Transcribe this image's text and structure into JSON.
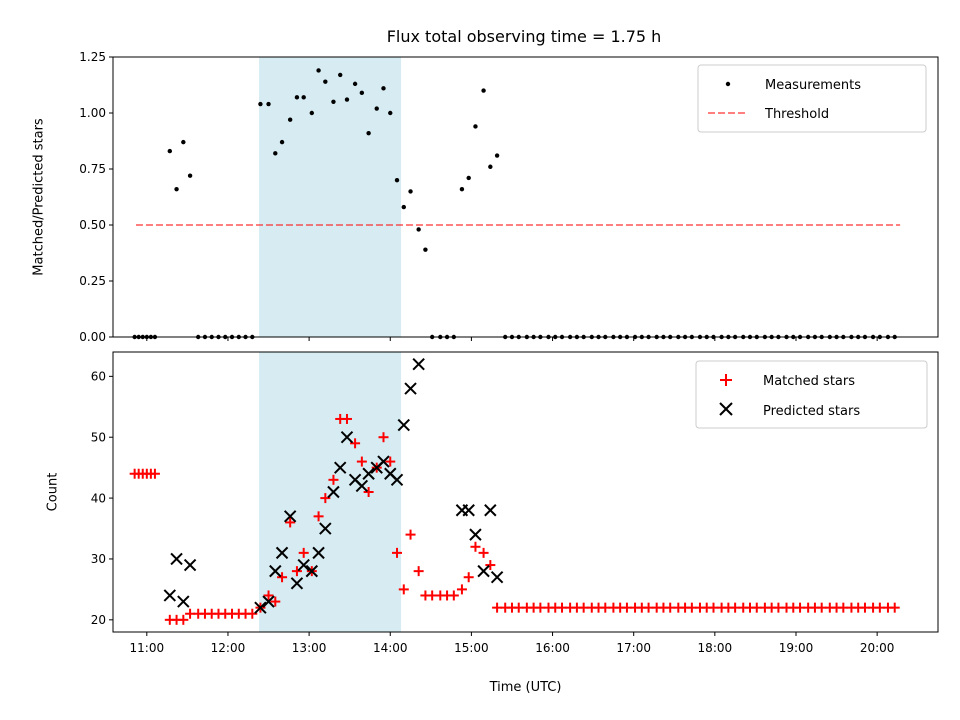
{
  "title": "Flux total observing time = 1.75 h",
  "chart_data": [
    {
      "type": "scatter",
      "ylabel": "Matched/Predicted stars",
      "xlabel": "",
      "xlim": [
        "10:35",
        "20:45"
      ],
      "ylim": [
        0,
        1.25
      ],
      "yticks": [
        "0.00",
        "0.25",
        "0.50",
        "0.75",
        "1.00",
        "1.25"
      ],
      "shaded_region": [
        "12:23",
        "14:08"
      ],
      "threshold": 0.5,
      "threshold_range": [
        "10:52",
        "20:17"
      ],
      "legend": [
        "Measurements",
        "Threshold"
      ],
      "legend_position": "top-right",
      "series": [
        {
          "name": "Measurements",
          "points": [
            [
              "10:51",
              0
            ],
            [
              "10:54",
              0
            ],
            [
              "10:57",
              0
            ],
            [
              "11:00",
              0
            ],
            [
              "11:03",
              0
            ],
            [
              "11:06",
              0
            ],
            [
              "11:17",
              0.83
            ],
            [
              "11:22",
              0.66
            ],
            [
              "11:27",
              0.87
            ],
            [
              "11:32",
              0.72
            ],
            [
              "11:38",
              0
            ],
            [
              "11:43",
              0
            ],
            [
              "11:48",
              0
            ],
            [
              "11:53",
              0
            ],
            [
              "11:58",
              0
            ],
            [
              "12:03",
              0
            ],
            [
              "12:08",
              0
            ],
            [
              "12:13",
              0
            ],
            [
              "12:18",
              0
            ],
            [
              "12:24",
              1.04
            ],
            [
              "12:30",
              1.04
            ],
            [
              "12:35",
              0.82
            ],
            [
              "12:40",
              0.87
            ],
            [
              "12:46",
              0.97
            ],
            [
              "12:51",
              1.07
            ],
            [
              "12:56",
              1.07
            ],
            [
              "13:02",
              1.0
            ],
            [
              "13:07",
              1.19
            ],
            [
              "13:12",
              1.14
            ],
            [
              "13:18",
              1.05
            ],
            [
              "13:23",
              1.17
            ],
            [
              "13:28",
              1.06
            ],
            [
              "13:34",
              1.13
            ],
            [
              "13:39",
              1.09
            ],
            [
              "13:44",
              0.91
            ],
            [
              "13:50",
              1.02
            ],
            [
              "13:55",
              1.11
            ],
            [
              "14:00",
              1.0
            ],
            [
              "14:05",
              0.7
            ],
            [
              "14:10",
              0.58
            ],
            [
              "14:15",
              0.65
            ],
            [
              "14:21",
              0.48
            ],
            [
              "14:26",
              0.39
            ],
            [
              "14:31",
              0
            ],
            [
              "14:37",
              0
            ],
            [
              "14:42",
              0
            ],
            [
              "14:47",
              0
            ],
            [
              "14:53",
              0.66
            ],
            [
              "14:58",
              0.71
            ],
            [
              "15:03",
              0.94
            ],
            [
              "15:09",
              1.1
            ],
            [
              "15:14",
              0.76
            ],
            [
              "15:19",
              0.81
            ],
            [
              "15:25",
              0
            ],
            [
              "15:30",
              0
            ],
            [
              "15:35",
              0
            ],
            [
              "15:41",
              0
            ],
            [
              "15:46",
              0
            ],
            [
              "15:51",
              0
            ],
            [
              "15:57",
              0
            ],
            [
              "16:02",
              0
            ],
            [
              "16:07",
              0
            ],
            [
              "16:13",
              0
            ],
            [
              "16:18",
              0
            ],
            [
              "16:23",
              0
            ],
            [
              "16:29",
              0
            ],
            [
              "16:34",
              0
            ],
            [
              "16:39",
              0
            ],
            [
              "16:45",
              0
            ],
            [
              "16:50",
              0
            ],
            [
              "16:55",
              0
            ],
            [
              "17:01",
              0
            ],
            [
              "17:06",
              0
            ],
            [
              "17:11",
              0
            ],
            [
              "17:17",
              0
            ],
            [
              "17:22",
              0
            ],
            [
              "17:27",
              0
            ],
            [
              "17:33",
              0
            ],
            [
              "17:38",
              0
            ],
            [
              "17:43",
              0
            ],
            [
              "17:49",
              0
            ],
            [
              "17:54",
              0
            ],
            [
              "17:59",
              0
            ],
            [
              "18:05",
              0
            ],
            [
              "18:10",
              0
            ],
            [
              "18:15",
              0
            ],
            [
              "18:21",
              0
            ],
            [
              "18:26",
              0
            ],
            [
              "18:31",
              0
            ],
            [
              "18:37",
              0
            ],
            [
              "18:42",
              0
            ],
            [
              "18:47",
              0
            ],
            [
              "18:53",
              0
            ],
            [
              "18:58",
              0
            ],
            [
              "19:03",
              0
            ],
            [
              "19:09",
              0
            ],
            [
              "19:14",
              0
            ],
            [
              "19:19",
              0
            ],
            [
              "19:25",
              0
            ],
            [
              "19:30",
              0
            ],
            [
              "19:35",
              0
            ],
            [
              "19:41",
              0
            ],
            [
              "19:46",
              0
            ],
            [
              "19:51",
              0
            ],
            [
              "19:57",
              0
            ],
            [
              "20:02",
              0
            ],
            [
              "20:08",
              0
            ],
            [
              "20:13",
              0
            ]
          ]
        }
      ]
    },
    {
      "type": "scatter",
      "xlabel": "Time (UTC)",
      "ylabel": "Count",
      "xlim": [
        "10:35",
        "20:45"
      ],
      "ylim": [
        18,
        64
      ],
      "yticks": [
        "20",
        "30",
        "40",
        "50",
        "60"
      ],
      "xticks": [
        "11:00",
        "12:00",
        "13:00",
        "14:00",
        "15:00",
        "16:00",
        "17:00",
        "18:00",
        "19:00",
        "20:00"
      ],
      "shaded_region": [
        "12:23",
        "14:08"
      ],
      "legend": [
        "Matched stars",
        "Predicted stars"
      ],
      "legend_position": "top-right",
      "series": [
        {
          "name": "Matched stars",
          "points": [
            [
              "10:51",
              44
            ],
            [
              "10:54",
              44
            ],
            [
              "10:57",
              44
            ],
            [
              "11:00",
              44
            ],
            [
              "11:03",
              44
            ],
            [
              "11:06",
              44
            ],
            [
              "11:17",
              20
            ],
            [
              "11:22",
              20
            ],
            [
              "11:27",
              20
            ],
            [
              "11:32",
              21
            ],
            [
              "11:38",
              21
            ],
            [
              "11:43",
              21
            ],
            [
              "11:48",
              21
            ],
            [
              "11:53",
              21
            ],
            [
              "11:58",
              21
            ],
            [
              "12:03",
              21
            ],
            [
              "12:08",
              21
            ],
            [
              "12:13",
              21
            ],
            [
              "12:18",
              21
            ],
            [
              "12:24",
              22
            ],
            [
              "12:30",
              24
            ],
            [
              "12:35",
              23
            ],
            [
              "12:40",
              27
            ],
            [
              "12:46",
              36
            ],
            [
              "12:51",
              28
            ],
            [
              "12:56",
              31
            ],
            [
              "13:02",
              28
            ],
            [
              "13:07",
              37
            ],
            [
              "13:12",
              40
            ],
            [
              "13:18",
              43
            ],
            [
              "13:23",
              53
            ],
            [
              "13:28",
              53
            ],
            [
              "13:34",
              49
            ],
            [
              "13:39",
              46
            ],
            [
              "13:44",
              41
            ],
            [
              "13:50",
              45
            ],
            [
              "13:55",
              50
            ],
            [
              "14:00",
              46
            ],
            [
              "14:05",
              31
            ],
            [
              "14:10",
              25
            ],
            [
              "14:15",
              34
            ],
            [
              "14:21",
              28
            ],
            [
              "14:26",
              24
            ],
            [
              "14:31",
              24
            ],
            [
              "14:37",
              24
            ],
            [
              "14:42",
              24
            ],
            [
              "14:47",
              24
            ],
            [
              "14:53",
              25
            ],
            [
              "14:58",
              27
            ],
            [
              "15:03",
              32
            ],
            [
              "15:09",
              31
            ],
            [
              "15:14",
              29
            ],
            [
              "15:19",
              22
            ],
            [
              "15:25",
              22
            ],
            [
              "15:30",
              22
            ],
            [
              "15:35",
              22
            ],
            [
              "15:41",
              22
            ],
            [
              "15:46",
              22
            ],
            [
              "15:51",
              22
            ],
            [
              "15:57",
              22
            ],
            [
              "16:02",
              22
            ],
            [
              "16:07",
              22
            ],
            [
              "16:13",
              22
            ],
            [
              "16:18",
              22
            ],
            [
              "16:23",
              22
            ],
            [
              "16:29",
              22
            ],
            [
              "16:34",
              22
            ],
            [
              "16:39",
              22
            ],
            [
              "16:45",
              22
            ],
            [
              "16:50",
              22
            ],
            [
              "16:55",
              22
            ],
            [
              "17:01",
              22
            ],
            [
              "17:06",
              22
            ],
            [
              "17:11",
              22
            ],
            [
              "17:17",
              22
            ],
            [
              "17:22",
              22
            ],
            [
              "17:27",
              22
            ],
            [
              "17:33",
              22
            ],
            [
              "17:38",
              22
            ],
            [
              "17:43",
              22
            ],
            [
              "17:49",
              22
            ],
            [
              "17:54",
              22
            ],
            [
              "17:59",
              22
            ],
            [
              "18:05",
              22
            ],
            [
              "18:10",
              22
            ],
            [
              "18:15",
              22
            ],
            [
              "18:21",
              22
            ],
            [
              "18:26",
              22
            ],
            [
              "18:31",
              22
            ],
            [
              "18:37",
              22
            ],
            [
              "18:42",
              22
            ],
            [
              "18:47",
              22
            ],
            [
              "18:53",
              22
            ],
            [
              "18:58",
              22
            ],
            [
              "19:03",
              22
            ],
            [
              "19:09",
              22
            ],
            [
              "19:14",
              22
            ],
            [
              "19:19",
              22
            ],
            [
              "19:25",
              22
            ],
            [
              "19:30",
              22
            ],
            [
              "19:35",
              22
            ],
            [
              "19:41",
              22
            ],
            [
              "19:46",
              22
            ],
            [
              "19:51",
              22
            ],
            [
              "19:57",
              22
            ],
            [
              "20:02",
              22
            ],
            [
              "20:08",
              22
            ],
            [
              "20:13",
              22
            ]
          ]
        },
        {
          "name": "Predicted stars",
          "points": [
            [
              "11:17",
              24
            ],
            [
              "11:22",
              30
            ],
            [
              "11:27",
              23
            ],
            [
              "11:32",
              29
            ],
            [
              "12:24",
              22
            ],
            [
              "12:30",
              23
            ],
            [
              "12:35",
              28
            ],
            [
              "12:40",
              31
            ],
            [
              "12:46",
              37
            ],
            [
              "12:51",
              26
            ],
            [
              "12:56",
              29
            ],
            [
              "13:02",
              28
            ],
            [
              "13:07",
              31
            ],
            [
              "13:12",
              35
            ],
            [
              "13:18",
              41
            ],
            [
              "13:23",
              45
            ],
            [
              "13:28",
              50
            ],
            [
              "13:34",
              43
            ],
            [
              "13:39",
              42
            ],
            [
              "13:44",
              44
            ],
            [
              "13:50",
              45
            ],
            [
              "13:55",
              46
            ],
            [
              "14:00",
              44
            ],
            [
              "14:05",
              43
            ],
            [
              "14:10",
              52
            ],
            [
              "14:15",
              58
            ],
            [
              "14:21",
              62
            ],
            [
              "14:53",
              38
            ],
            [
              "14:58",
              38
            ],
            [
              "15:03",
              34
            ],
            [
              "15:09",
              28
            ],
            [
              "15:14",
              38
            ],
            [
              "15:19",
              27
            ]
          ]
        }
      ]
    }
  ]
}
